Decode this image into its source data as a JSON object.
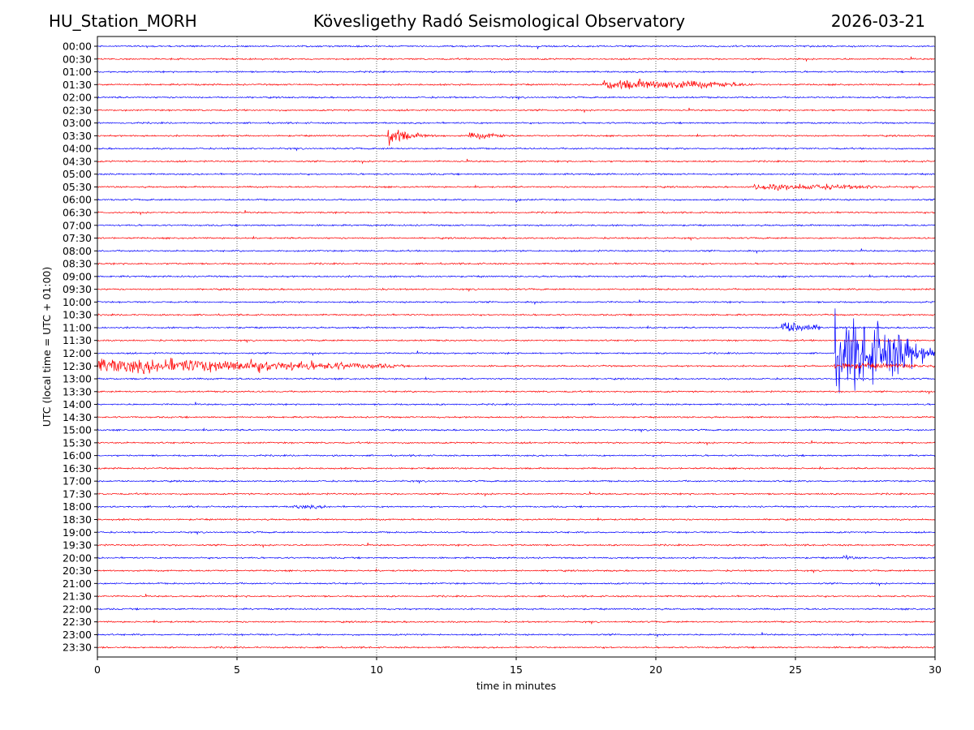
{
  "header": {
    "station": "HU_Station_MORH",
    "observatory": "Kövesligethy Radó Seismological Observatory",
    "date": "2026-03-21"
  },
  "chart_data": {
    "type": "line",
    "title": "Kövesligethy Radó Seismological Observatory",
    "xlabel": "time in minutes",
    "ylabel": "UTC (local time = UTC + 01:00)",
    "xlim": [
      0,
      30
    ],
    "x_ticks": [
      0,
      5,
      10,
      15,
      20,
      25,
      30
    ],
    "grid": "vertical dotted lines at x ticks",
    "row_colors": [
      "#0000ff",
      "#ff0000"
    ],
    "rows": [
      "00:00",
      "00:30",
      "01:00",
      "01:30",
      "02:00",
      "02:30",
      "03:00",
      "03:30",
      "04:00",
      "04:30",
      "05:00",
      "05:30",
      "06:00",
      "06:30",
      "07:00",
      "07:30",
      "08:00",
      "08:30",
      "09:00",
      "09:30",
      "10:00",
      "10:30",
      "11:00",
      "11:30",
      "12:00",
      "12:30",
      "13:00",
      "13:30",
      "14:00",
      "14:30",
      "15:00",
      "15:30",
      "16:00",
      "16:30",
      "17:00",
      "17:30",
      "18:00",
      "18:30",
      "19:00",
      "19:30",
      "20:00",
      "20:30",
      "21:00",
      "21:30",
      "22:00",
      "22:30",
      "23:00",
      "23:30"
    ],
    "events": [
      {
        "row": "01:30",
        "start_min": 18.1,
        "end_min": 23.5,
        "amplitude": 0.9,
        "decay": "slow"
      },
      {
        "row": "03:30",
        "start_min": 10.4,
        "end_min": 12.5,
        "amplitude": 2.7,
        "decay": "fast"
      },
      {
        "row": "03:30",
        "start_min": 13.3,
        "end_min": 14.8,
        "amplitude": 0.5,
        "decay": "slow"
      },
      {
        "row": "05:30",
        "start_min": 23.5,
        "end_min": 28.5,
        "amplitude": 0.5,
        "decay": "slow"
      },
      {
        "row": "06:00",
        "start_min": 15.0,
        "end_min": 15.2,
        "amplitude": 0.5,
        "decay": "fast"
      },
      {
        "row": "11:00",
        "start_min": 24.5,
        "end_min": 26.0,
        "amplitude": 1.2,
        "decay": "slow"
      },
      {
        "row": "12:00",
        "start_min": 26.4,
        "end_min": 30.0,
        "amplitude": 7.0,
        "decay": "slow"
      },
      {
        "row": "12:30",
        "start_min": 0.0,
        "end_min": 11.0,
        "amplitude": 1.4,
        "decay": "slow"
      },
      {
        "row": "12:30",
        "start_min": 26.4,
        "end_min": 30.0,
        "amplitude": 0.5,
        "decay": "slow"
      },
      {
        "row": "18:00",
        "start_min": 7.0,
        "end_min": 8.5,
        "amplitude": 0.3,
        "decay": "slow"
      },
      {
        "row": "20:00",
        "start_min": 26.7,
        "end_min": 27.6,
        "amplitude": 0.7,
        "decay": "fast"
      }
    ]
  }
}
